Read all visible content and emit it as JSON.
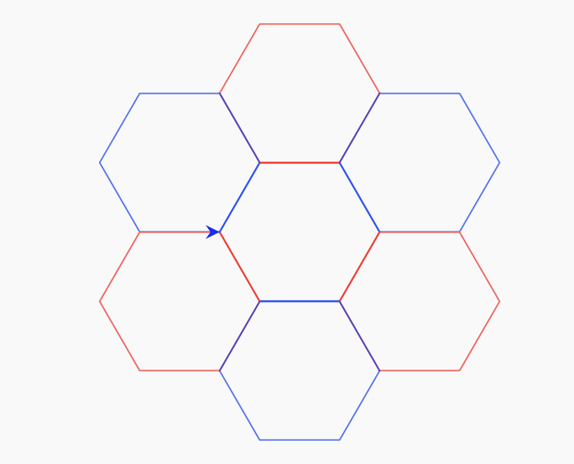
{
  "diagram": {
    "shape": "hexagon-flower",
    "hexagon_count": 7,
    "colors": {
      "background": "#f9f9fa",
      "red": "#f06a62",
      "blue": "#5a78ef",
      "red_strong": "#ee4236",
      "blue_strong": "#3056ee",
      "purple": "#5f45b8",
      "arrow": "#1a2cf0"
    },
    "hexagons": [
      {
        "name": "hex-top",
        "color": "red"
      },
      {
        "name": "hex-upper-left",
        "color": "blue"
      },
      {
        "name": "hex-upper-right",
        "color": "blue"
      },
      {
        "name": "hex-center",
        "color": "none"
      },
      {
        "name": "hex-lower-left",
        "color": "red"
      },
      {
        "name": "hex-lower-right",
        "color": "red"
      },
      {
        "name": "hex-bottom",
        "color": "blue"
      }
    ],
    "arrow": {
      "name": "direction-arrow-icon",
      "points": "right"
    }
  }
}
